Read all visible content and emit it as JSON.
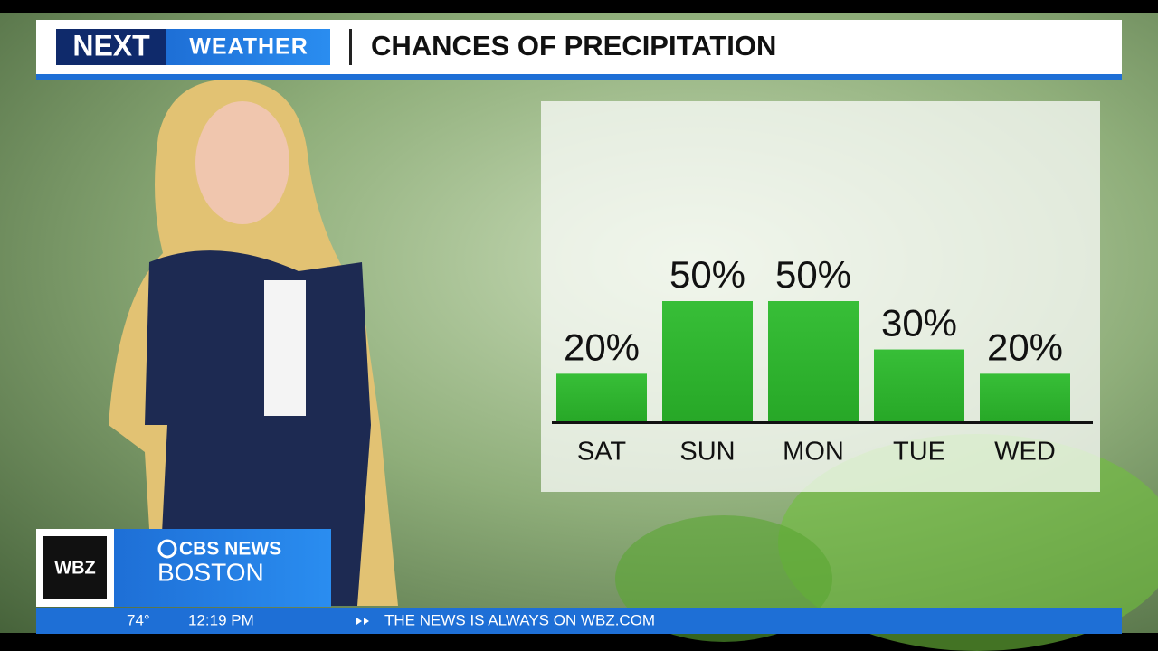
{
  "header": {
    "logo_left": "NEXT",
    "logo_right": "WEATHER",
    "title": "CHANCES OF PRECIPITATION"
  },
  "chart_data": {
    "type": "bar",
    "categories": [
      "SAT",
      "SUN",
      "MON",
      "TUE",
      "WED"
    ],
    "values": [
      20,
      50,
      50,
      30,
      20
    ],
    "value_labels": [
      "20%",
      "50%",
      "50%",
      "30%",
      "20%"
    ],
    "color": "#2fb52f"
  },
  "lower_third": {
    "station": "WBZ",
    "network": "CBS NEWS",
    "city": "BOSTON"
  },
  "ticker": {
    "temperature": "74°",
    "time": "12:19 PM",
    "message": "THE NEWS IS ALWAYS ON WBZ.COM"
  }
}
